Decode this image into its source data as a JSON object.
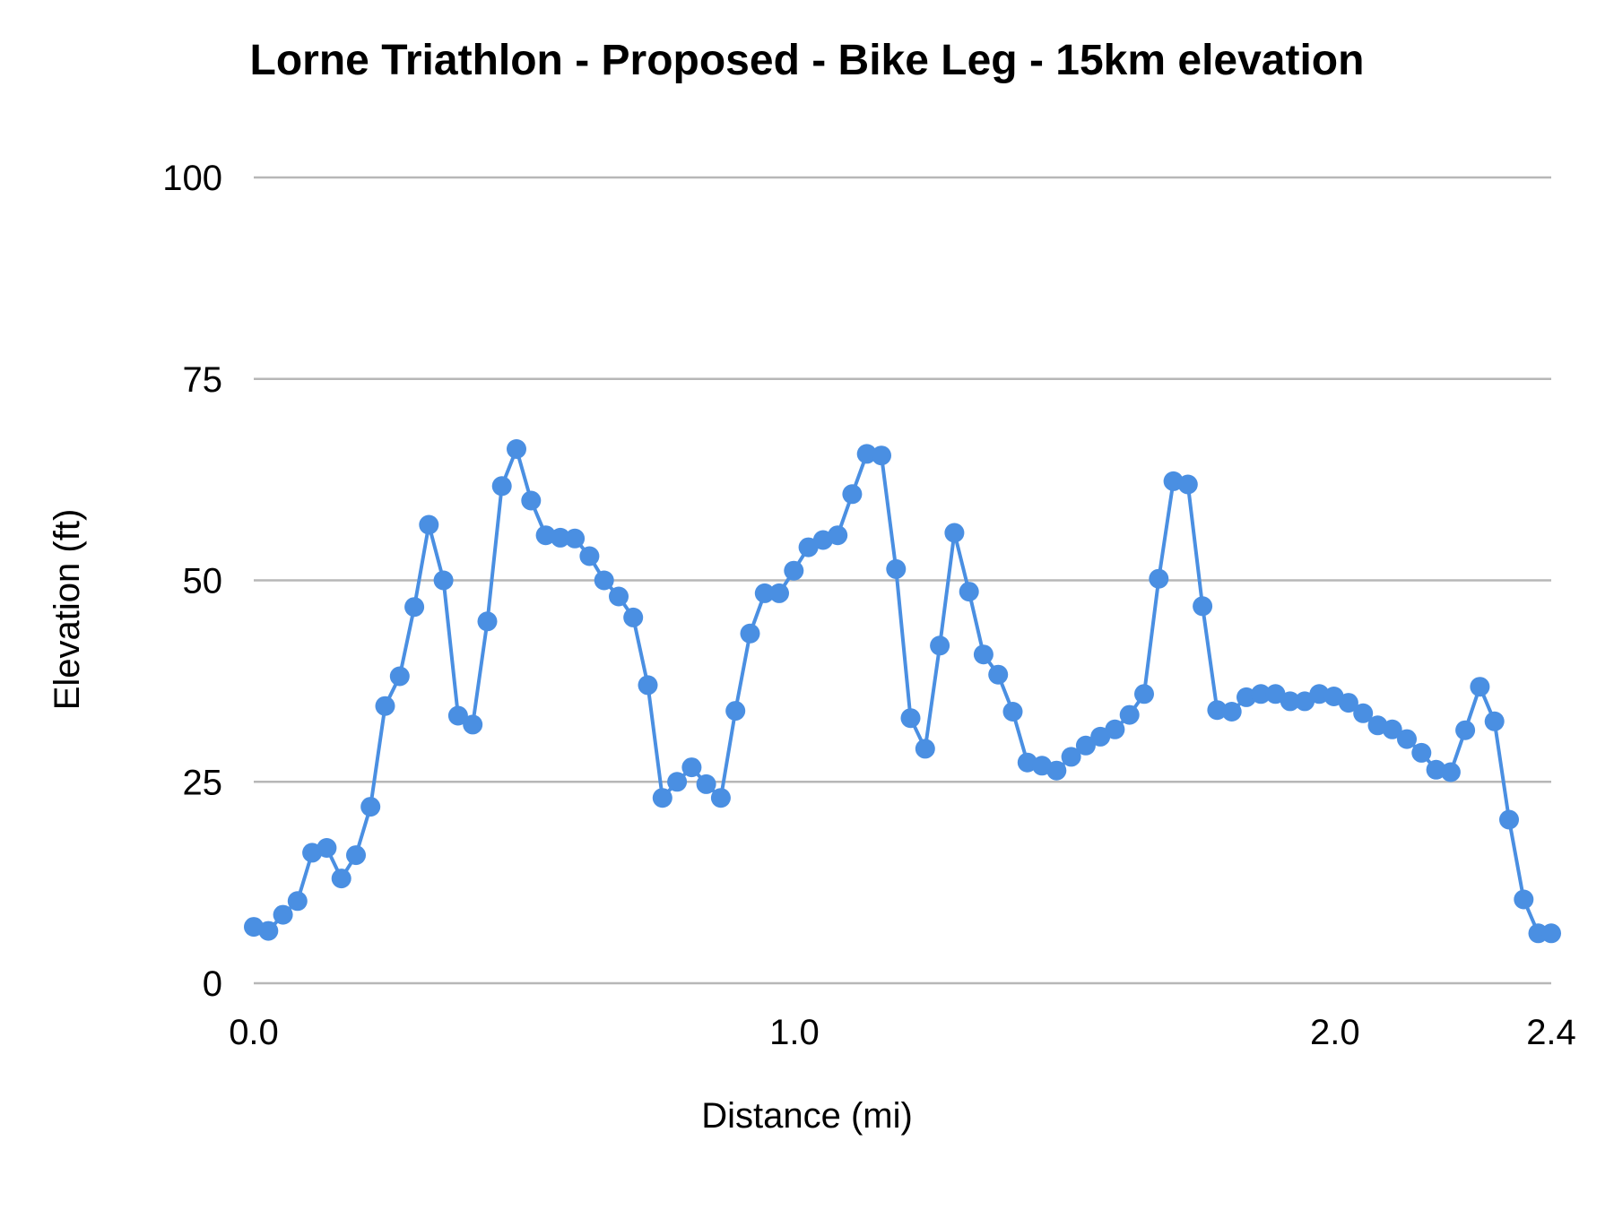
{
  "chart_data": {
    "type": "line",
    "title": "Lorne Triathlon - Proposed  - Bike Leg - 15km elevation",
    "xlabel": "Distance (mi)",
    "ylabel": "Elevation (ft)",
    "xlim": [
      0,
      2.4
    ],
    "ylim": [
      0,
      100
    ],
    "x_ticks": [
      {
        "value": 0.0,
        "label": "0.0"
      },
      {
        "value": 1.0,
        "label": "1.0"
      },
      {
        "value": 2.0,
        "label": "2.0"
      },
      {
        "value": 2.4,
        "label": "2.4"
      }
    ],
    "y_ticks": [
      {
        "value": 0,
        "label": "0"
      },
      {
        "value": 25,
        "label": "25"
      },
      {
        "value": 50,
        "label": "50"
      },
      {
        "value": 75,
        "label": "75"
      },
      {
        "value": 100,
        "label": "100"
      }
    ],
    "grid": true,
    "legend": "none",
    "series": [
      {
        "color": "#4a8fe2",
        "markers": true,
        "x": [
          0.0,
          0.027,
          0.054,
          0.081,
          0.108,
          0.135,
          0.162,
          0.189,
          0.216,
          0.243,
          0.27,
          0.297,
          0.324,
          0.351,
          0.378,
          0.405,
          0.432,
          0.459,
          0.486,
          0.513,
          0.54,
          0.567,
          0.594,
          0.621,
          0.648,
          0.675,
          0.702,
          0.729,
          0.756,
          0.783,
          0.81,
          0.837,
          0.864,
          0.891,
          0.918,
          0.945,
          0.972,
          0.999,
          1.026,
          1.053,
          1.08,
          1.107,
          1.134,
          1.161,
          1.188,
          1.215,
          1.242,
          1.269,
          1.296,
          1.323,
          1.35,
          1.377,
          1.404,
          1.431,
          1.458,
          1.485,
          1.512,
          1.539,
          1.566,
          1.593,
          1.62,
          1.647,
          1.674,
          1.701,
          1.728,
          1.755,
          1.782,
          1.809,
          1.836,
          1.863,
          1.89,
          1.917,
          1.944,
          1.971,
          1.998,
          2.025,
          2.052,
          2.079,
          2.106,
          2.133,
          2.16,
          2.187,
          2.214,
          2.241,
          2.268,
          2.295,
          2.322,
          2.349,
          2.376,
          2.4
        ],
        "y": [
          7.0,
          6.5,
          8.5,
          10.2,
          16.2,
          16.8,
          13.0,
          15.9,
          21.9,
          34.4,
          38.1,
          46.7,
          56.9,
          50.0,
          33.2,
          32.1,
          44.9,
          61.7,
          66.3,
          59.9,
          55.6,
          55.3,
          55.2,
          53.0,
          50.0,
          48.0,
          45.4,
          37.0,
          23.0,
          25.0,
          26.8,
          24.7,
          23.0,
          33.8,
          43.4,
          48.4,
          48.4,
          51.2,
          54.1,
          55.0,
          55.6,
          60.7,
          65.7,
          65.5,
          51.4,
          32.9,
          29.1,
          41.9,
          55.9,
          48.6,
          40.8,
          38.3,
          33.7,
          27.4,
          27.0,
          26.4,
          28.1,
          29.5,
          30.6,
          31.5,
          33.3,
          35.9,
          50.2,
          62.3,
          61.9,
          46.8,
          33.9,
          33.7,
          35.5,
          35.9,
          35.9,
          35.0,
          35.0,
          35.9,
          35.6,
          34.8,
          33.5,
          32.0,
          31.5,
          30.3,
          28.6,
          26.5,
          26.2,
          31.4,
          36.8,
          32.5,
          20.3,
          10.4,
          6.2,
          6.2
        ]
      }
    ]
  }
}
